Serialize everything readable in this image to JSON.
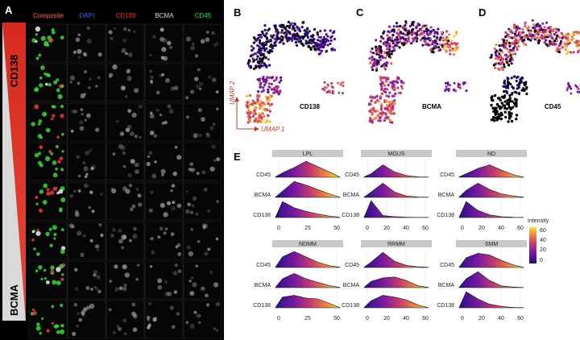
{
  "panels": {
    "a": "A",
    "b": "B",
    "c": "C",
    "d": "D",
    "e": "E"
  },
  "panelA": {
    "channels": [
      {
        "label": "Composite",
        "color": "#ff6633"
      },
      {
        "label": "DAPI",
        "color": "#3366ff"
      },
      {
        "label": "CD138",
        "color": "#ff2222"
      },
      {
        "label": "BCMA",
        "color": "#dddddd"
      },
      {
        "label": "CD45",
        "color": "#33dd33"
      }
    ],
    "side_top": "CD138",
    "side_bottom": "BCMA"
  },
  "umap": {
    "panels": [
      {
        "marker": "CD138"
      },
      {
        "marker": "BCMA"
      },
      {
        "marker": "CD45"
      }
    ],
    "axis_x": "UMAP 1",
    "axis_y": "UMAP 2"
  },
  "ridge": {
    "legend_title": "Intensity",
    "legend_ticks": [
      "60",
      "40",
      "20",
      "0"
    ],
    "rows": [
      "CD45",
      "BCMA",
      "CD138"
    ],
    "ticks_50": [
      "0",
      "25",
      "50"
    ],
    "ticks_60": [
      "0",
      "20",
      "40",
      "60"
    ],
    "groups": [
      {
        "name": "LPL",
        "ticks": "ticks_50"
      },
      {
        "name": "MGUS",
        "ticks": "ticks_60"
      },
      {
        "name": "ND",
        "ticks": "ticks_60"
      },
      {
        "name": "NDMM",
        "ticks": "ticks_50"
      },
      {
        "name": "RRMM",
        "ticks": "ticks_60"
      },
      {
        "name": "SMM",
        "ticks": "ticks_60"
      }
    ]
  }
}
